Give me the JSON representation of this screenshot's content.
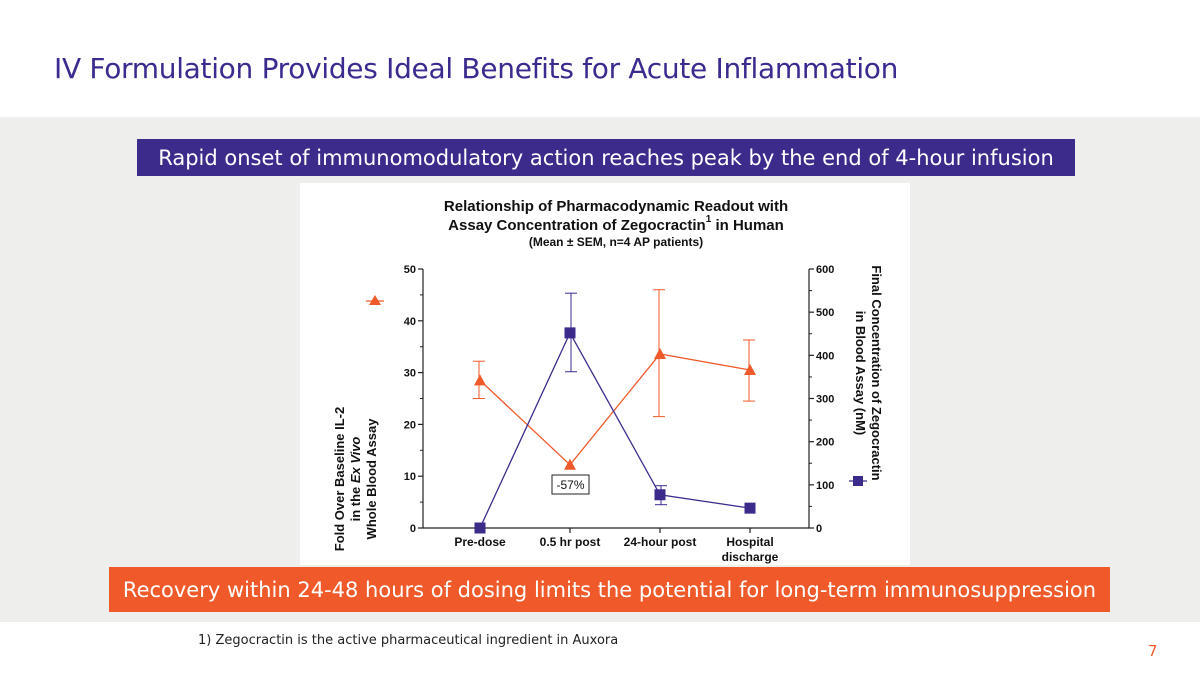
{
  "slide": {
    "title": "IV Formulation Provides Ideal Benefits for Acute Inflammation",
    "banner_top": "Rapid onset of immunomodulatory action reaches peak by the end of 4-hour infusion",
    "banner_bottom": "Recovery within 24-48 hours of dosing limits the potential for long-term immunosuppression",
    "footnote": "1) Zegocractin is the active pharmaceutical ingredient in Auxora",
    "page_number": "7",
    "colors": {
      "title": "#3b2a8f",
      "purple": "#3d2b8c",
      "orange": "#f0592a",
      "band": "#eeeeec"
    }
  },
  "chart_data": {
    "type": "line",
    "title_line1": "Relationship of Pharmacodynamic Readout with",
    "title_line2_a": "Assay Concentration of Zegocractin",
    "title_line2_b": " in Human",
    "title_superscript": "1",
    "subtitle": "(Mean ± SEM, n=4 AP patients)",
    "categories": [
      "Pre-dose",
      "0.5 hr post",
      "24-hour post",
      "Hospital discharge"
    ],
    "y_left": {
      "label_line1": "Fold Over Baseline IL-2",
      "label_line2_a": "in the ",
      "label_line2_italic": "Ex Vivo",
      "label_line3": "Whole Blood Assay",
      "range": [
        0,
        50
      ],
      "ticks": [
        "0",
        "10",
        "20",
        "30",
        "40",
        "50"
      ]
    },
    "y_right": {
      "label_line1": "Final Concentration of Zegocractin",
      "label_line2": "in Blood Assay (nM)",
      "range": [
        0,
        600
      ],
      "ticks": [
        "0",
        "100",
        "200",
        "300",
        "400",
        "500",
        "600"
      ]
    },
    "series": [
      {
        "name": "Fold Over Baseline IL-2",
        "axis": "left",
        "color": "#f0592a",
        "marker": "triangle",
        "values": [
          28.5,
          12.2,
          33.6,
          30.5
        ],
        "err_low": [
          25.0,
          12.2,
          21.5,
          24.5
        ],
        "err_high": [
          32.2,
          12.2,
          46.0,
          36.3
        ]
      },
      {
        "name": "Final Concentration of Zegocractin",
        "axis": "right",
        "color": "#3d2b8c",
        "marker": "square",
        "values": [
          0,
          452,
          77,
          46
        ],
        "err_low": [
          0,
          362,
          54,
          46
        ],
        "err_high": [
          0,
          544,
          98,
          46
        ]
      }
    ],
    "annotation": "-57%"
  }
}
